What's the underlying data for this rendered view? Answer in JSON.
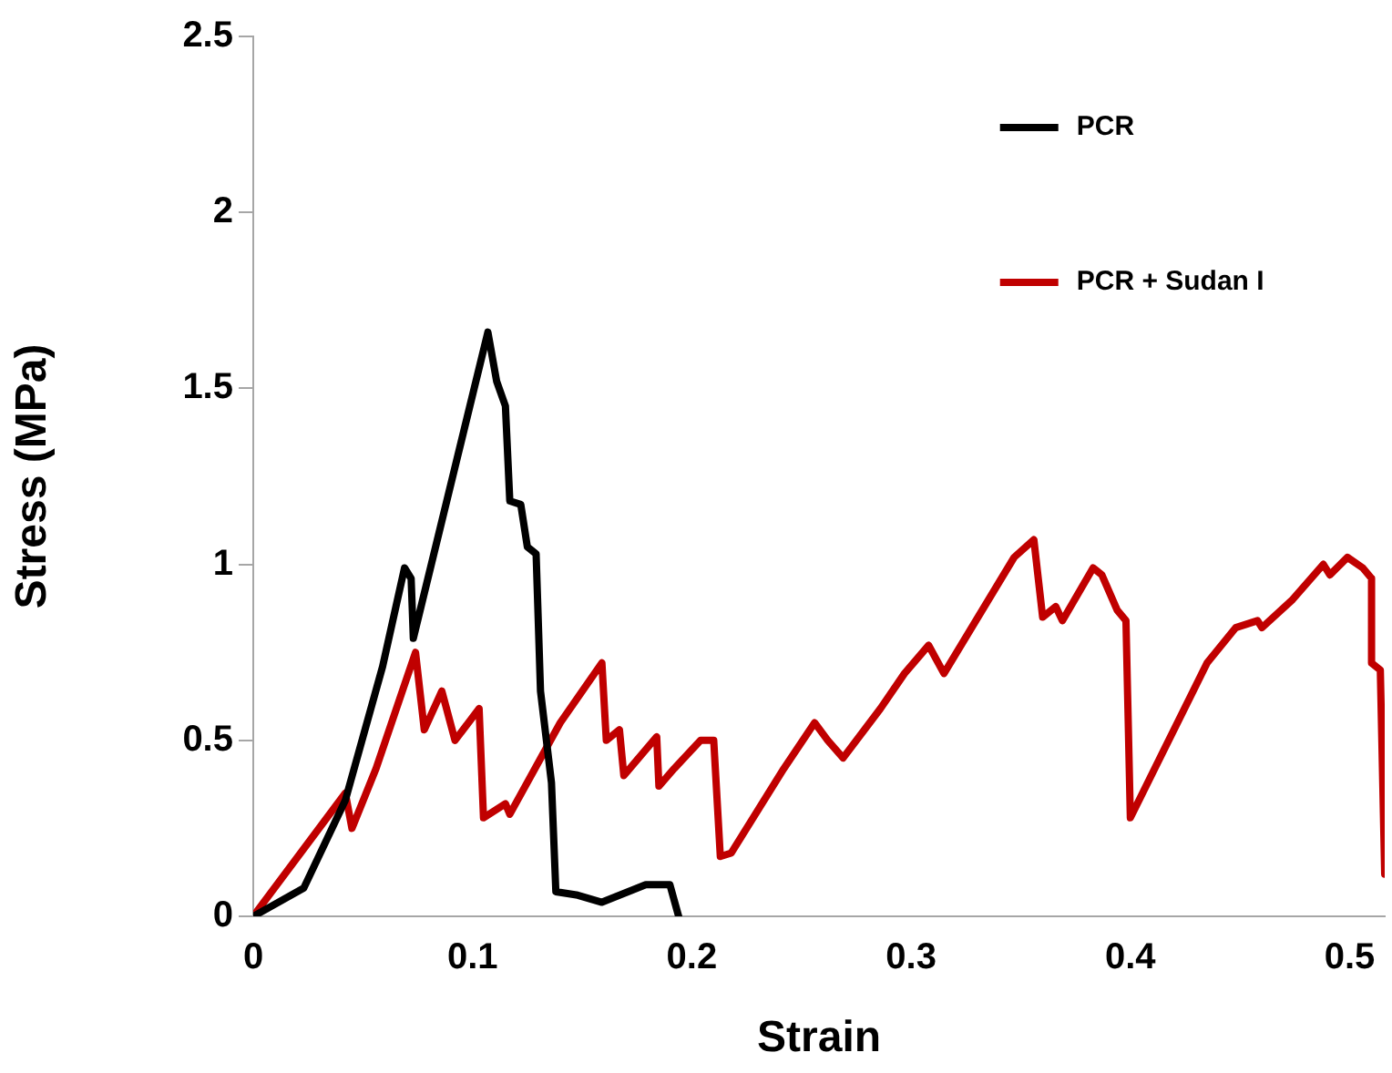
{
  "chart_data": {
    "type": "line",
    "xlabel": "Strain",
    "ylabel": "Stress (MPa)",
    "xlim": [
      0,
      0.516
    ],
    "xticks": [
      0,
      0.1,
      0.2,
      0.3,
      0.4,
      0.5
    ],
    "ylim": [
      0,
      2.5
    ],
    "yticks": [
      0,
      0.5,
      1,
      1.5,
      2,
      2.5
    ],
    "grid": false,
    "legend": "top right",
    "marker": "none",
    "line_style": "solid",
    "series": [
      {
        "name": "PCR",
        "color": "#000000",
        "x": [
          0,
          0.023,
          0.042,
          0.059,
          0.069,
          0.072,
          0.073,
          0.107,
          0.111,
          0.115,
          0.117,
          0.122,
          0.125,
          0.129,
          0.131,
          0.136,
          0.138,
          0.148,
          0.159,
          0.179,
          0.19,
          0.194
        ],
        "values": [
          0,
          0.08,
          0.33,
          0.71,
          0.99,
          0.96,
          0.79,
          1.66,
          1.52,
          1.45,
          1.18,
          1.17,
          1.05,
          1.03,
          0.64,
          0.38,
          0.07,
          0.06,
          0.04,
          0.09,
          0.09,
          0
        ]
      },
      {
        "name": "PCR + Sudan I",
        "color": "#c00000",
        "x": [
          0,
          0.042,
          0.045,
          0.056,
          0.074,
          0.078,
          0.086,
          0.092,
          0.103,
          0.105,
          0.115,
          0.117,
          0.14,
          0.159,
          0.161,
          0.167,
          0.169,
          0.184,
          0.185,
          0.192,
          0.204,
          0.21,
          0.213,
          0.218,
          0.242,
          0.256,
          0.262,
          0.269,
          0.286,
          0.297,
          0.308,
          0.315,
          0.347,
          0.356,
          0.36,
          0.366,
          0.369,
          0.383,
          0.387,
          0.394,
          0.398,
          0.4,
          0.435,
          0.448,
          0.458,
          0.46,
          0.474,
          0.488,
          0.491,
          0.499,
          0.506,
          0.51,
          0.51,
          0.514,
          0.516
        ],
        "values": [
          0,
          0.35,
          0.25,
          0.42,
          0.75,
          0.53,
          0.64,
          0.5,
          0.59,
          0.28,
          0.32,
          0.29,
          0.55,
          0.72,
          0.5,
          0.53,
          0.4,
          0.51,
          0.37,
          0.42,
          0.5,
          0.5,
          0.17,
          0.18,
          0.42,
          0.55,
          0.5,
          0.45,
          0.59,
          0.69,
          0.77,
          0.69,
          1.02,
          1.07,
          0.85,
          0.88,
          0.84,
          0.99,
          0.97,
          0.87,
          0.84,
          0.28,
          0.72,
          0.82,
          0.84,
          0.82,
          0.9,
          1.0,
          0.97,
          1.02,
          0.99,
          0.96,
          0.72,
          0.7,
          0.12
        ]
      }
    ]
  }
}
